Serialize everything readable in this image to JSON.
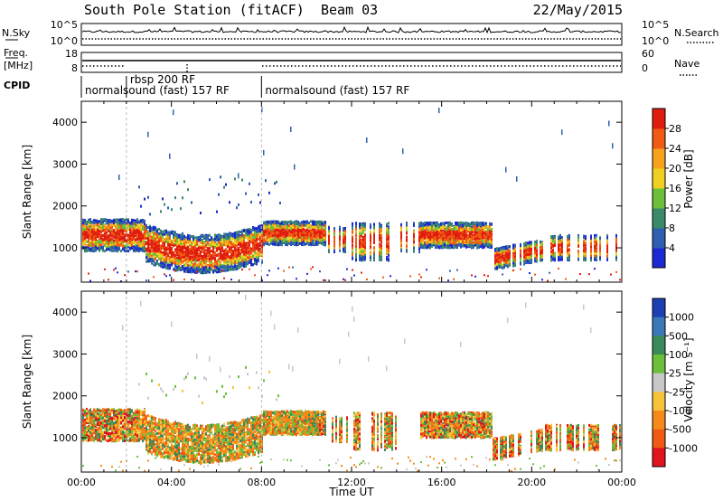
{
  "header": {
    "station": "South Pole Station (fitACF)",
    "beam": "Beam 03",
    "date": "22/May/2015"
  },
  "strips": {
    "nsky_label": "N.Sky",
    "nsky_ticks": [
      "10^5",
      "10^0"
    ],
    "nsearch_label": "N.Search",
    "nsearch_ticks": [
      "10^5",
      "10^0"
    ],
    "freq_label_line1": "Freq.",
    "freq_label_line2": "[MHz]",
    "freq_ticks": [
      "18",
      "8"
    ],
    "nave_label": "Nave",
    "nave_ticks": [
      "60",
      "0"
    ],
    "cpid_label": "CPID",
    "cpid_segments": [
      {
        "label": "normalsound (fast) 157 RF",
        "start_hour": 0.0
      },
      {
        "label": "rbsp 200 RF",
        "start_hour": 2.0
      },
      {
        "label": "normalsound (fast) 157 RF",
        "start_hour": 8.0
      }
    ]
  },
  "chart_data": [
    {
      "type": "heatmap",
      "name": "power",
      "ylabel": "Slant Range [km]",
      "ylim": [
        180,
        4500
      ],
      "yticks": [
        "1000",
        "2000",
        "3000",
        "4000"
      ],
      "xlim": [
        0,
        24
      ],
      "colorbar_label": "Power [dB]",
      "colorbar_ticks": [
        "4",
        "8",
        "12",
        "16",
        "20",
        "24",
        "28"
      ],
      "colors": [
        "#1e28d2",
        "#2f5fb0",
        "#3a8a6a",
        "#6bbf3a",
        "#f0d020",
        "#f7a21b",
        "#f05a14",
        "#e01e10"
      ]
    },
    {
      "type": "heatmap",
      "name": "velocity",
      "ylabel": "Slant Range [km]",
      "ylim": [
        180,
        4500
      ],
      "yticks": [
        "1000",
        "2000",
        "3000",
        "4000"
      ],
      "xlim": [
        0,
        24
      ],
      "xticks": [
        "00:00",
        "04:00",
        "08:00",
        "12:00",
        "16:00",
        "20:00",
        "00:00"
      ],
      "xlabel": "Time UT",
      "colorbar_label": "Velocity [m s⁻¹]",
      "colorbar_ticks": [
        "1000",
        "500",
        "100",
        "25",
        "-25",
        "-100",
        "-500",
        "-1000"
      ],
      "colors": [
        "#1e3fb4",
        "#3a78b8",
        "#3a8a5a",
        "#6bbf3a",
        "#c8c8c8",
        "#f7c33b",
        "#f58a1a",
        "#ef5a14",
        "#e0141e"
      ]
    }
  ]
}
